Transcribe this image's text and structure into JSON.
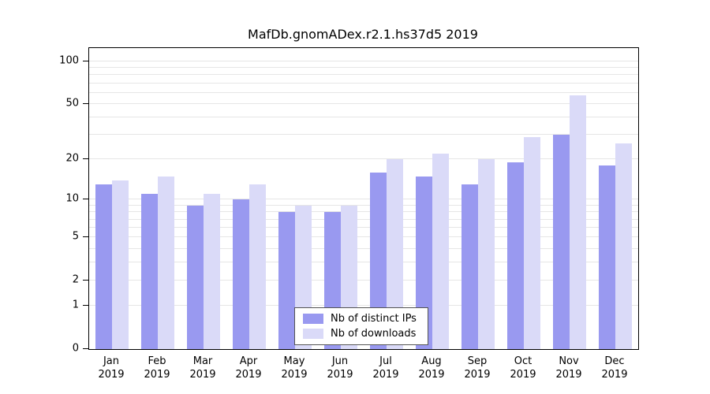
{
  "title": "MafDb.gnomADex.r2.1.hs37d5 2019",
  "chart_data": {
    "type": "bar",
    "title": "MafDb.gnomADex.r2.1.hs37d5 2019",
    "categories": [
      "Jan",
      "Feb",
      "Mar",
      "Apr",
      "May",
      "Jun",
      "Jul",
      "Aug",
      "Sep",
      "Oct",
      "Nov",
      "Dec"
    ],
    "year_label": "2019",
    "series": [
      {
        "name": "Nb of distinct IPs",
        "color": "#9999f0",
        "values": [
          13,
          11,
          9,
          10,
          8,
          8,
          16,
          15,
          13,
          19,
          30,
          18
        ]
      },
      {
        "name": "Nb of downloads",
        "color": "#dadaf8",
        "values": [
          14,
          15,
          11,
          13,
          9,
          9,
          20,
          22,
          20,
          29,
          58,
          26
        ]
      }
    ],
    "y_ticks": [
      0,
      1,
      2,
      5,
      10,
      20,
      50,
      100
    ],
    "grid_values": [
      1,
      2,
      3,
      4,
      5,
      6,
      7,
      8,
      9,
      10,
      20,
      30,
      40,
      50,
      60,
      70,
      80,
      90,
      100
    ],
    "scale": "log1p",
    "ylim": [
      0,
      100
    ],
    "grid": true,
    "legend_position": "bottom-center"
  }
}
